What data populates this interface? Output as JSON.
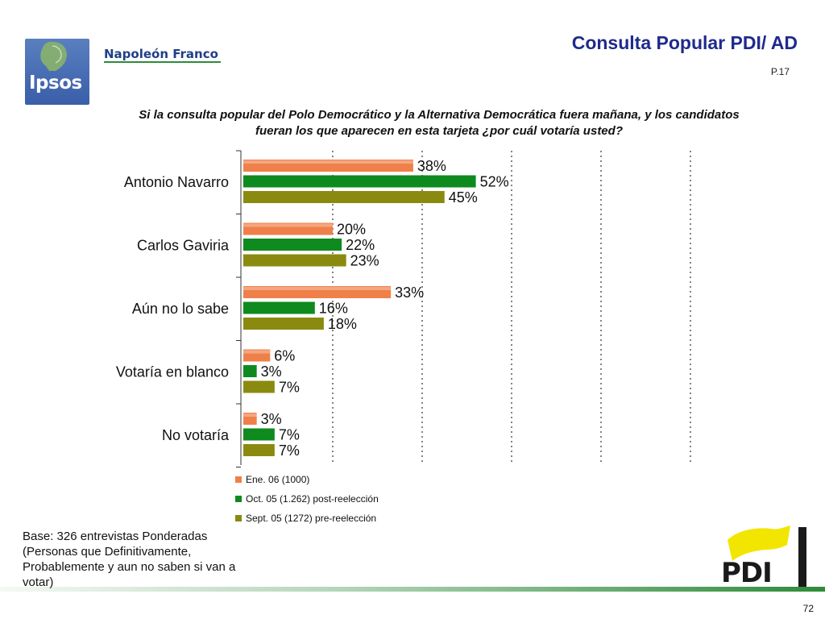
{
  "header": {
    "logo_text": "Ipsos",
    "brand": "Napoleón Franco",
    "title": "Consulta Popular PDI/ AD",
    "page_ref": "P.17"
  },
  "question": "Si la consulta popular del Polo Democrático y la Alternativa Democrática fuera mañana, y los candidatos fueran los que aparecen en esta tarjeta ¿por cuál votaría usted?",
  "chart_data": {
    "type": "bar",
    "orientation": "horizontal",
    "title": "Si la consulta popular del Polo Democrático y la Alternativa Democrática fuera mañana, y los candidatos fueran los que aparecen en esta tarjeta ¿por cuál votaría usted?",
    "categories": [
      "Antonio Navarro",
      "Carlos Gaviria",
      "Aún no lo sabe",
      "Votaría en blanco",
      "No votaría"
    ],
    "series": [
      {
        "name": "Ene. 06 (1000)",
        "color": "#f0804a",
        "values": [
          38,
          20,
          33,
          6,
          3
        ]
      },
      {
        "name": "Oct. 05 (1.262) post-reelección",
        "color": "#0e8a1e",
        "values": [
          52,
          22,
          16,
          3,
          7
        ]
      },
      {
        "name": "Sept. 05 (1272) pre-reelección",
        "color": "#8a8a10",
        "values": [
          45,
          23,
          18,
          7,
          7
        ]
      }
    ],
    "value_suffix": "%",
    "xlim": [
      0,
      100
    ],
    "grid": "vertical dashed",
    "legend_position": "bottom",
    "xlabel": "",
    "ylabel": ""
  },
  "base_note": "Base: 326 entrevistas Ponderadas (Personas que Definitivamente, Probablemente y aun no saben si van a  votar)",
  "footer": {
    "pdi_logo_text": "PDI",
    "page_number": "72"
  },
  "colors": {
    "title": "#1f2a8c",
    "brand": "#1f3f86",
    "accent_green": "#2e8b3a",
    "pdi_yellow": "#f2e600"
  }
}
